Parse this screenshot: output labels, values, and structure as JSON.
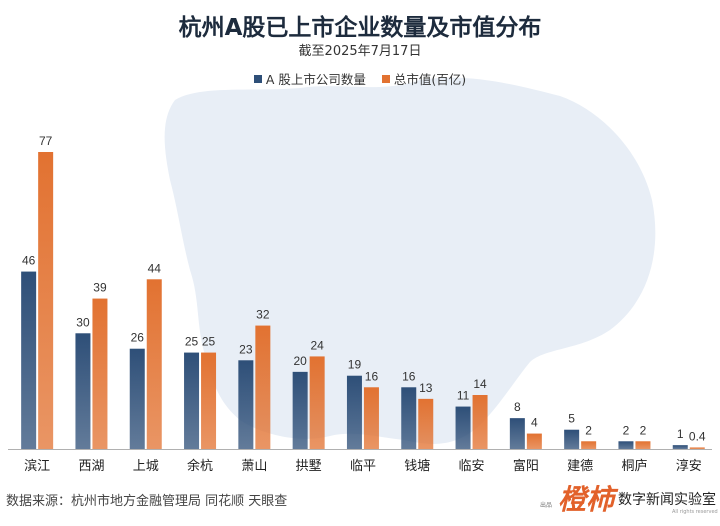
{
  "title": "杭州A股已上市企业数量及市值分布",
  "subtitle": "截至2025年7月17日",
  "source": "数据来源：杭州市地方金融管理局 同花顺 天眼查",
  "logo": {
    "mark": "橙柿",
    "small": "出品",
    "text": "数字新闻实验室",
    "tiny": "All rights reserved"
  },
  "colors": {
    "count": "#2e4f78",
    "value": "#e27231",
    "map": "#e8eef6",
    "axis": "#b0b0b0"
  },
  "chart_data": {
    "type": "bar",
    "categories": [
      "滨江",
      "西湖",
      "上城",
      "余杭",
      "萧山",
      "拱墅",
      "临平",
      "钱塘",
      "临安",
      "富阳",
      "建德",
      "桐庐",
      "淳安"
    ],
    "series": [
      {
        "name": "A 股上市公司数量",
        "values": [
          46,
          30,
          26,
          25,
          23,
          20,
          19,
          16,
          11,
          8,
          5,
          2,
          1
        ],
        "labels": [
          "46",
          "30",
          "26",
          "25",
          "23",
          "20",
          "19",
          "16",
          "11",
          "8",
          "5",
          "2",
          "1"
        ]
      },
      {
        "name": "总市值(百亿)",
        "values": [
          77,
          39,
          44,
          25,
          32,
          24,
          16,
          13,
          14,
          4,
          2,
          2,
          0.4
        ],
        "labels": [
          "77",
          "39",
          "44",
          "25",
          "32",
          "24",
          "16",
          "13",
          "14",
          "4",
          "2",
          "2",
          "0.4"
        ]
      }
    ],
    "ylim": [
      0,
      80
    ],
    "grid": false,
    "legend": "top-center"
  }
}
